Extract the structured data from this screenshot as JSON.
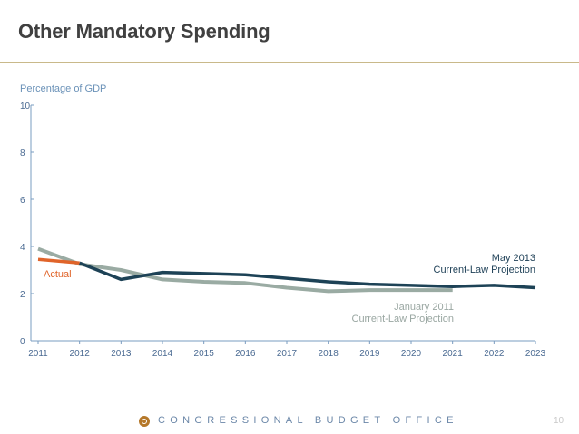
{
  "slide": {
    "title": "Other Mandatory Spending",
    "footer_text": "CONGRESSIONAL BUDGET OFFICE",
    "page_number": "10"
  },
  "chart_data": {
    "type": "line",
    "ylabel": "Percentage of GDP",
    "ylim": [
      0,
      10
    ],
    "y_ticks": [
      0,
      2,
      4,
      6,
      8,
      10
    ],
    "x_ticks": [
      2011,
      2012,
      2013,
      2014,
      2015,
      2016,
      2017,
      2018,
      2019,
      2020,
      2021,
      2022,
      2023
    ],
    "xlim": [
      2011,
      2023
    ],
    "grid": false,
    "series": [
      {
        "name": "January 2011 Current-Law Projection",
        "label_lines": [
          "January 2011",
          "Current-Law Projection"
        ],
        "color": "#9aaba3",
        "x": [
          2011,
          2012,
          2013,
          2014,
          2015,
          2016,
          2017,
          2018,
          2019,
          2020,
          2021
        ],
        "y": [
          3.9,
          3.25,
          3.0,
          2.6,
          2.5,
          2.45,
          2.25,
          2.1,
          2.15,
          2.15,
          2.15
        ]
      },
      {
        "name": "Actual",
        "label_lines": [
          "Actual"
        ],
        "color": "#e0642a",
        "x": [
          2011,
          2012
        ],
        "y": [
          3.45,
          3.3
        ]
      },
      {
        "name": "May 2013 Current-Law Projection",
        "label_lines": [
          "May 2013",
          "Current-Law Projection"
        ],
        "color": "#1d4256",
        "x": [
          2012,
          2013,
          2014,
          2015,
          2016,
          2017,
          2018,
          2019,
          2020,
          2021,
          2022,
          2023
        ],
        "y": [
          3.3,
          2.6,
          2.9,
          2.85,
          2.8,
          2.65,
          2.5,
          2.4,
          2.35,
          2.3,
          2.35,
          2.25
        ]
      }
    ]
  }
}
